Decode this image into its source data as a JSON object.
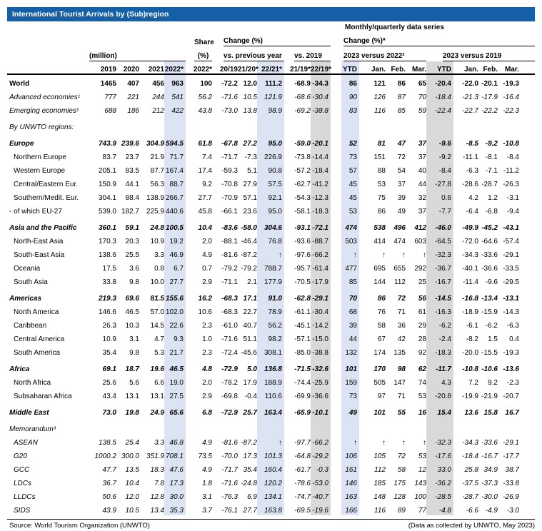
{
  "title": "International Tourist Arrivals by (Sub)region",
  "colors": {
    "title_bar": "#155fa6",
    "column_blue": "#dce3f2",
    "column_gray": "#d9d9d9"
  },
  "header": {
    "monthly_series": "Monthly/quarterly data series",
    "million": "(million)",
    "share1": "Share",
    "share2": "(%)",
    "change": "Change (%)",
    "vs_previous_year": "vs. previous year",
    "vs_2019": "vs. 2019",
    "change_monthly": "Change (%)*",
    "v2023_2022": "2023 versus 2022²",
    "v2023_2019": "2023 versus 2019",
    "columns": [
      "2019",
      "2020",
      "2021",
      "2022*",
      "2022*",
      "20/19",
      "21/20*",
      "22/21*",
      "21/19*",
      "22/19*",
      "YTD",
      "Jan.",
      "Feb.",
      "Mar.",
      "YTD",
      "Jan.",
      "Feb.",
      "Mar."
    ]
  },
  "rows": [
    {
      "key": "world",
      "label": "World",
      "style": "bold",
      "indent": false,
      "gap": false,
      "values": [
        "1465",
        "407",
        "456",
        "963",
        "100",
        "-72.2",
        "12.0",
        "111.2",
        "-68.9",
        "-34.3",
        "86",
        "121",
        "86",
        "65",
        "-20.4",
        "-22.0",
        "-20.1",
        "-19.3"
      ]
    },
    {
      "key": "advanced-economies",
      "label": "Advanced economies¹",
      "style": "italic",
      "indent": false,
      "gap": false,
      "values": [
        "777",
        "221",
        "244",
        "541",
        "56.2",
        "-71.6",
        "10.5",
        "121.9",
        "-68.6",
        "-30.4",
        "90",
        "126",
        "87",
        "70",
        "-18.4",
        "-21.3",
        "-17.9",
        "-16.4"
      ]
    },
    {
      "key": "emerging-economies",
      "label": "Emerging economies¹",
      "style": "italic",
      "indent": false,
      "gap": false,
      "values": [
        "688",
        "186",
        "212",
        "422",
        "43.8",
        "-73.0",
        "13.8",
        "98.9",
        "-69.2",
        "-38.8",
        "83",
        "116",
        "85",
        "59",
        "-22.4",
        "-22.7",
        "-22.2",
        "-22.3"
      ]
    },
    {
      "key": "by-unwto-regions",
      "label": "By UNWTO regions:",
      "style": "italic",
      "indent": false,
      "gap": true,
      "values": []
    },
    {
      "key": "europe",
      "label": "Europe",
      "style": "bolditalic",
      "indent": false,
      "gap": true,
      "values": [
        "743.9",
        "239.6",
        "304.9",
        "594.5",
        "61.8",
        "-67.8",
        "27.2",
        "95.0",
        "-59.0",
        "-20.1",
        "52",
        "81",
        "47",
        "37",
        "-9.6",
        "-8.5",
        "-9.2",
        "-10.8"
      ]
    },
    {
      "key": "northern-europe",
      "label": "Northern Europe",
      "style": "normal",
      "indent": true,
      "gap": false,
      "values": [
        "83.7",
        "23.7",
        "21.9",
        "71.7",
        "7.4",
        "-71.7",
        "-7.3",
        "226.9",
        "-73.8",
        "-14.4",
        "73",
        "151",
        "72",
        "37",
        "-9.2",
        "-11.1",
        "-8.1",
        "-8.4"
      ]
    },
    {
      "key": "western-europe",
      "label": "Western Europe",
      "style": "normal",
      "indent": true,
      "gap": false,
      "values": [
        "205.1",
        "83.5",
        "87.7",
        "167.4",
        "17.4",
        "-59.3",
        "5.1",
        "90.8",
        "-57.2",
        "-18.4",
        "57",
        "88",
        "54",
        "40",
        "-8.4",
        "-6.3",
        "-7.1",
        "-11.2"
      ]
    },
    {
      "key": "central-eastern-europe",
      "label": "Central/Eastern Eur.",
      "style": "normal",
      "indent": true,
      "gap": false,
      "values": [
        "150.9",
        "44.1",
        "56.3",
        "88.7",
        "9.2",
        "-70.8",
        "27.9",
        "57.5",
        "-62.7",
        "-41.2",
        "45",
        "53",
        "37",
        "44",
        "-27.8",
        "-28.6",
        "-28.7",
        "-26.3"
      ]
    },
    {
      "key": "southern-medit-europe",
      "label": "Southern/Medit. Eur.",
      "style": "normal",
      "indent": true,
      "gap": false,
      "values": [
        "304.1",
        "88.4",
        "138.9",
        "266.7",
        "27.7",
        "-70.9",
        "57.1",
        "92.1",
        "-54.3",
        "-12.3",
        "45",
        "75",
        "39",
        "32",
        "0.6",
        "4.2",
        "1.2",
        "-3.1"
      ]
    },
    {
      "key": "eu-27",
      "label": "- of which EU-27",
      "style": "normal",
      "indent": false,
      "gap": false,
      "values": [
        "539.0",
        "182.7",
        "225.9",
        "440.6",
        "45.8",
        "-66.1",
        "23.6",
        "95.0",
        "-58.1",
        "-18.3",
        "53",
        "86",
        "49",
        "37",
        "-7.7",
        "-6.4",
        "-6.8",
        "-9.4"
      ]
    },
    {
      "key": "asia-pacific",
      "label": "Asia and the Pacific",
      "style": "bolditalic",
      "indent": false,
      "gap": true,
      "values": [
        "360.1",
        "59.1",
        "24.8",
        "100.5",
        "10.4",
        "-83.6",
        "-58.0",
        "304.6",
        "-93.1",
        "-72.1",
        "474",
        "538",
        "496",
        "412",
        "-46.0",
        "-49.9",
        "-45.2",
        "-43.1"
      ]
    },
    {
      "key": "north-east-asia",
      "label": "North-East Asia",
      "style": "normal",
      "indent": true,
      "gap": false,
      "values": [
        "170.3",
        "20.3",
        "10.9",
        "19.2",
        "2.0",
        "-88.1",
        "-46.4",
        "76.8",
        "-93.6",
        "-88.7",
        "503",
        "414",
        "474",
        "603",
        "-64.5",
        "-72.0",
        "-64.6",
        "-57.4"
      ]
    },
    {
      "key": "south-east-asia",
      "label": "South-East Asia",
      "style": "normal",
      "indent": true,
      "gap": false,
      "values": [
        "138.6",
        "25.5",
        "3.3",
        "46.9",
        "4.9",
        "-81.6",
        "-87.2",
        "↑",
        "-97.6",
        "-66.2",
        "↑",
        "↑",
        "↑",
        "↑",
        "-32.3",
        "-34.3",
        "-33.6",
        "-29.1"
      ]
    },
    {
      "key": "oceania",
      "label": "Oceania",
      "style": "normal",
      "indent": true,
      "gap": false,
      "values": [
        "17.5",
        "3.6",
        "0.8",
        "6.7",
        "0.7",
        "-79.2",
        "-79.2",
        "788.7",
        "-95.7",
        "-61.4",
        "477",
        "695",
        "655",
        "292",
        "-36.7",
        "-40.1",
        "-36.6",
        "-33.5"
      ]
    },
    {
      "key": "south-asia",
      "label": "South Asia",
      "style": "normal",
      "indent": true,
      "gap": false,
      "values": [
        "33.8",
        "9.8",
        "10.0",
        "27.7",
        "2.9",
        "-71.1",
        "2.1",
        "177.9",
        "-70.5",
        "-17.9",
        "85",
        "144",
        "112",
        "25",
        "-16.7",
        "-11.4",
        "-9.6",
        "-29.5"
      ]
    },
    {
      "key": "americas",
      "label": "Americas",
      "style": "bolditalic",
      "indent": false,
      "gap": true,
      "values": [
        "219.3",
        "69.6",
        "81.5",
        "155.6",
        "16.2",
        "-68.3",
        "17.1",
        "91.0",
        "-62.8",
        "-29.1",
        "70",
        "86",
        "72",
        "56",
        "-14.5",
        "-16.8",
        "-13.4",
        "-13.1"
      ]
    },
    {
      "key": "north-america",
      "label": "North America",
      "style": "normal",
      "indent": true,
      "gap": false,
      "values": [
        "146.6",
        "46.5",
        "57.0",
        "102.0",
        "10.6",
        "-68.3",
        "22.7",
        "78.9",
        "-61.1",
        "-30.4",
        "68",
        "76",
        "71",
        "61",
        "-16.3",
        "-18.9",
        "-15.9",
        "-14.3"
      ]
    },
    {
      "key": "caribbean",
      "label": "Caribbean",
      "style": "normal",
      "indent": true,
      "gap": false,
      "values": [
        "26.3",
        "10.3",
        "14.5",
        "22.6",
        "2.3",
        "-61.0",
        "40.7",
        "56.2",
        "-45.1",
        "-14.2",
        "39",
        "58",
        "36",
        "29",
        "-6.2",
        "-6.1",
        "-6.2",
        "-6.3"
      ]
    },
    {
      "key": "central-america",
      "label": "Central America",
      "style": "normal",
      "indent": true,
      "gap": false,
      "values": [
        "10.9",
        "3.1",
        "4.7",
        "9.3",
        "1.0",
        "-71.6",
        "51.1",
        "98.2",
        "-57.1",
        "-15.0",
        "44",
        "67",
        "42",
        "28",
        "-2.4",
        "-8.2",
        "1.5",
        "0.4"
      ]
    },
    {
      "key": "south-america",
      "label": "South America",
      "style": "normal",
      "indent": true,
      "gap": false,
      "values": [
        "35.4",
        "9.8",
        "5.3",
        "21.7",
        "2.3",
        "-72.4",
        "-45.6",
        "308.1",
        "-85.0",
        "-38.8",
        "132",
        "174",
        "135",
        "92",
        "-18.3",
        "-20.0",
        "-15.5",
        "-19.3"
      ]
    },
    {
      "key": "africa",
      "label": "Africa",
      "style": "bolditalic",
      "indent": false,
      "gap": true,
      "values": [
        "69.1",
        "18.7",
        "19.6",
        "46.5",
        "4.8",
        "-72.9",
        "5.0",
        "136.8",
        "-71.5",
        "-32.6",
        "101",
        "170",
        "98",
        "62",
        "-11.7",
        "-10.8",
        "-10.6",
        "-13.6"
      ]
    },
    {
      "key": "north-africa",
      "label": "North Africa",
      "style": "normal",
      "indent": true,
      "gap": false,
      "values": [
        "25.6",
        "5.6",
        "6.6",
        "19.0",
        "2.0",
        "-78.2",
        "17.9",
        "188.9",
        "-74.4",
        "-25.9",
        "159",
        "505",
        "147",
        "74",
        "4.3",
        "7.2",
        "9.2",
        "-2.3"
      ]
    },
    {
      "key": "subsaharan-africa",
      "label": "Subsaharan Africa",
      "style": "normal",
      "indent": true,
      "gap": false,
      "values": [
        "43.4",
        "13.1",
        "13.1",
        "27.5",
        "2.9",
        "-69.8",
        "-0.4",
        "110.6",
        "-69.9",
        "-36.6",
        "73",
        "97",
        "71",
        "53",
        "-20.8",
        "-19.9",
        "-21.9",
        "-20.7"
      ]
    },
    {
      "key": "middle-east",
      "label": "Middle East",
      "style": "bolditalic",
      "indent": false,
      "gap": true,
      "values": [
        "73.0",
        "19.8",
        "24.9",
        "65.6",
        "6.8",
        "-72.9",
        "25.7",
        "163.4",
        "-65.9",
        "-10.1",
        "49",
        "101",
        "55",
        "16",
        "15.4",
        "13.6",
        "15.8",
        "16.7"
      ]
    },
    {
      "key": "memorandum",
      "label": "Memorandum³",
      "style": "italic",
      "indent": false,
      "gap": true,
      "values": []
    },
    {
      "key": "asean",
      "label": "ASEAN",
      "style": "italic",
      "indent": true,
      "gap": false,
      "values": [
        "138.5",
        "25.4",
        "3.3",
        "46.8",
        "4.9",
        "-81.6",
        "-87.2",
        "↑",
        "-97.7",
        "-66.2",
        "↑",
        "↑",
        "↑",
        "↑",
        "-32.3",
        "-34.3",
        "-33.6",
        "-29.1"
      ]
    },
    {
      "key": "g20",
      "label": "G20",
      "style": "italic",
      "indent": true,
      "gap": false,
      "values": [
        "1000.2",
        "300.0",
        "351.9",
        "708.1",
        "73.5",
        "-70.0",
        "17.3",
        "101.3",
        "-64.8",
        "-29.2",
        "106",
        "105",
        "72",
        "53",
        "-17.6",
        "-18.4",
        "-16.7",
        "-17.7"
      ]
    },
    {
      "key": "gcc",
      "label": "GCC",
      "style": "italic",
      "indent": true,
      "gap": false,
      "values": [
        "47.7",
        "13.5",
        "18.3",
        "47.6",
        "4.9",
        "-71.7",
        "35.4",
        "160.4",
        "-61.7",
        "-0.3",
        "161",
        "112",
        "58",
        "12",
        "33.0",
        "25.8",
        "34.9",
        "38.7"
      ]
    },
    {
      "key": "ldcs",
      "label": "LDCs",
      "style": "italic",
      "indent": true,
      "gap": false,
      "values": [
        "36.7",
        "10.4",
        "7.8",
        "17.3",
        "1.8",
        "-71.6",
        "-24.8",
        "120.2",
        "-78.6",
        "-53.0",
        "146",
        "185",
        "175",
        "143",
        "-36.2",
        "-37.5",
        "-37.3",
        "-33.8"
      ]
    },
    {
      "key": "lldcs",
      "label": "LLDCs",
      "style": "italic",
      "indent": true,
      "gap": false,
      "values": [
        "50.6",
        "12.0",
        "12.8",
        "30.0",
        "3.1",
        "-76.3",
        "6.9",
        "134.1",
        "-74.7",
        "-40.7",
        "163",
        "148",
        "128",
        "100",
        "-28.5",
        "-28.7",
        "-30.0",
        "-26.9"
      ]
    },
    {
      "key": "sids",
      "label": "SIDS",
      "style": "italic",
      "indent": true,
      "gap": false,
      "values": [
        "43.9",
        "10.5",
        "13.4",
        "35.3",
        "3.7",
        "-76.1",
        "27.7",
        "163.8",
        "-69.5",
        "-19.6",
        "166",
        "116",
        "89",
        "77",
        "-4.8",
        "-6.6",
        "-4.9",
        "-3.0"
      ]
    }
  ],
  "footer": {
    "source": "Source: World Tourism Organization (UNWTO)",
    "note": "(Data as collected by UNWTO, May 2023)"
  }
}
